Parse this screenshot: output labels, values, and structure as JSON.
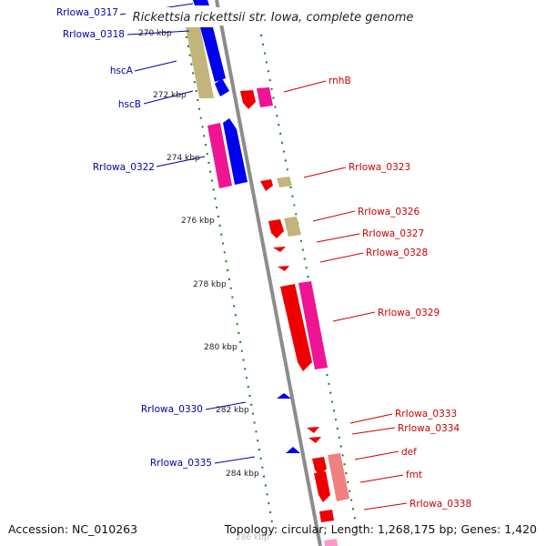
{
  "title": "Rickettsia rickettsii str. Iowa, complete genome",
  "footer": {
    "accession": "Accession: NC_010263",
    "summary": "Topology: circular; Length: 1,268,175 bp; Genes: 1,420"
  },
  "colors": {
    "forward_cds": "#0000ee",
    "reverse_cds": "#ee0000",
    "feature_pink": "#ee1493",
    "feature_tan": "#c2b47a",
    "feature_salmon": "#f08080",
    "label_forward": "#0000aa",
    "label_reverse": "#cc0000",
    "backbone": "#8c8c8c",
    "ticks": "#1a7a1a"
  },
  "scale_labels": [
    "270 kbp",
    "272 kbp",
    "274 kbp",
    "276 kbp",
    "278 kbp",
    "280 kbp",
    "282 kbp",
    "284 kbp",
    "286 kbp"
  ],
  "labels_left": [
    "RrIowa_0317",
    "RrIowa_0318",
    "hscA",
    "hscB",
    "RrIowa_0322",
    "RrIowa_0330",
    "RrIowa_0335"
  ],
  "labels_right": [
    "rnhB",
    "RrIowa_0323",
    "RrIowa_0326",
    "RrIowa_0327",
    "RrIowa_0328",
    "RrIowa_0329",
    "RrIowa_0333",
    "RrIowa_0334",
    "def",
    "fmt",
    "RrIowa_0338"
  ]
}
